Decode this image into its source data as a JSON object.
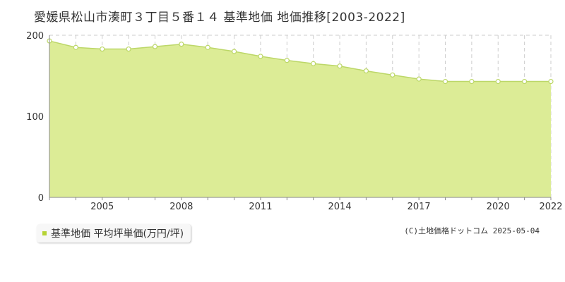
{
  "title": "愛媛県松山市湊町３丁目５番１４ 基準地価 地価推移[2003-2022]",
  "credit": "(C)土地価格ドットコム 2025-05-04",
  "legend_label": "基準地価 平均坪単価(万円/坪)",
  "colors": {
    "fill": "#dcec96",
    "line": "#bcd768",
    "grid": "#cccccc",
    "axis": "#888888",
    "legend_swatch": "#b5d334"
  },
  "chart_data": {
    "type": "area",
    "x": [
      2003,
      2004,
      2005,
      2006,
      2007,
      2008,
      2009,
      2010,
      2011,
      2012,
      2013,
      2014,
      2015,
      2016,
      2017,
      2018,
      2019,
      2020,
      2021,
      2022
    ],
    "series": [
      {
        "name": "基準地価 平均坪単価(万円/坪)",
        "values": [
          193,
          185,
          183,
          183,
          186,
          189,
          185,
          180,
          174,
          169,
          165,
          162,
          156,
          151,
          146,
          143,
          143,
          143,
          143,
          143
        ]
      }
    ],
    "xticks": [
      2005,
      2008,
      2011,
      2014,
      2017,
      2020,
      2022
    ],
    "yticks": [
      0,
      100,
      200
    ],
    "ylim": [
      0,
      200
    ],
    "xlim": [
      2003,
      2022
    ],
    "grid": true,
    "legend_position": "bottom-left"
  }
}
